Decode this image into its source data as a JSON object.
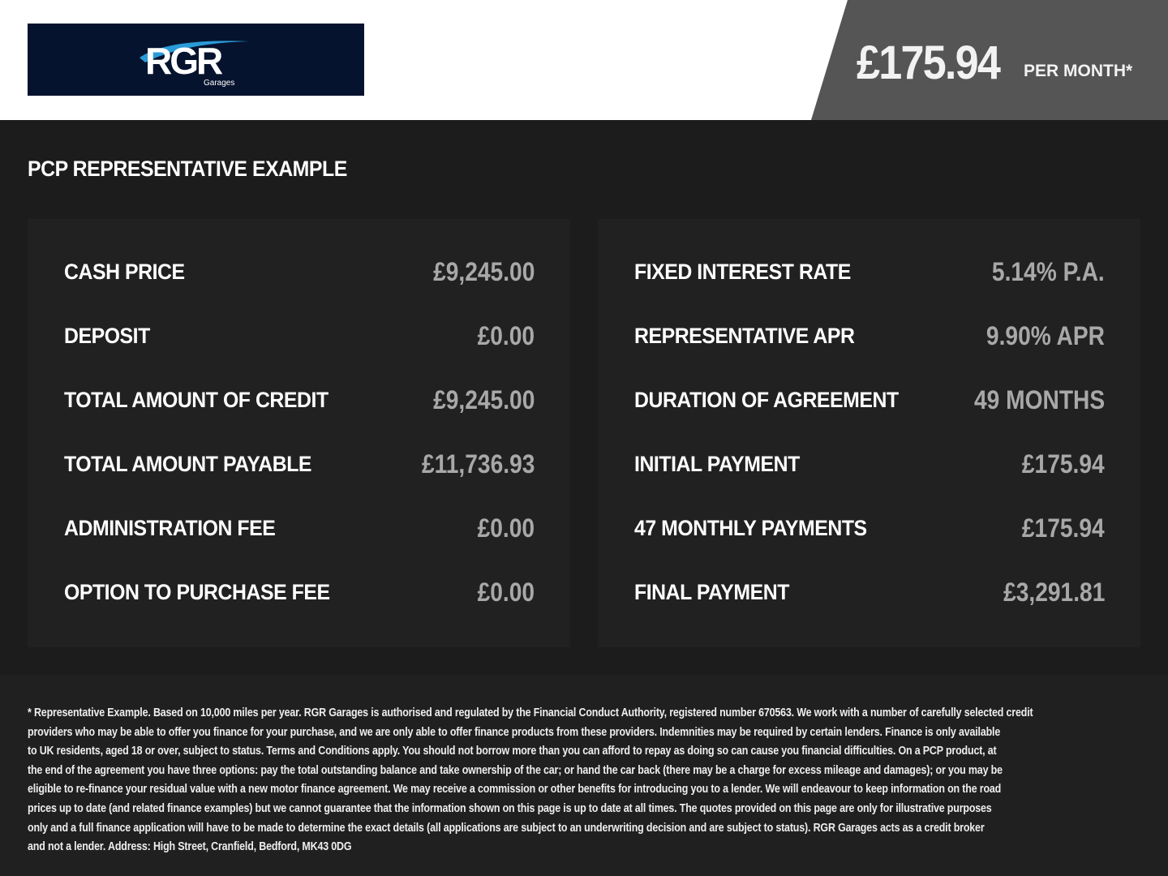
{
  "header": {
    "logo_text": "RGR",
    "logo_sub": "Garages",
    "monthly_price": "£175.94",
    "per_month_label": "PER MONTH*",
    "colors": {
      "logo_bg": "#06132e",
      "logo_accent": "#2a9ad8",
      "price_bg": "#555555"
    }
  },
  "title": "PCP REPRESENTATIVE EXAMPLE",
  "left_panel": [
    {
      "label": "CASH PRICE",
      "value": "£9,245.00"
    },
    {
      "label": "DEPOSIT",
      "value": "£0.00"
    },
    {
      "label": "TOTAL AMOUNT OF CREDIT",
      "value": "£9,245.00"
    },
    {
      "label": "TOTAL AMOUNT PAYABLE",
      "value": "£11,736.93"
    },
    {
      "label": "ADMINISTRATION FEE",
      "value": "£0.00"
    },
    {
      "label": "OPTION TO PURCHASE FEE",
      "value": "£0.00"
    }
  ],
  "right_panel": [
    {
      "label": "FIXED INTEREST RATE",
      "value": "5.14% P.A."
    },
    {
      "label": "REPRESENTATIVE APR",
      "value": "9.90% APR"
    },
    {
      "label": "DURATION OF AGREEMENT",
      "value": "49 MONTHS"
    },
    {
      "label": "INITIAL PAYMENT",
      "value": "£175.94"
    },
    {
      "label": "47 MONTHLY PAYMENTS",
      "value": "£175.94"
    },
    {
      "label": "FINAL PAYMENT",
      "value": "£3,291.81"
    }
  ],
  "disclaimer": [
    "* Representative Example. Based on 10,000 miles per year. RGR Garages is authorised and regulated by the Financial Conduct Authority, registered number 670563. We work with a number of carefully selected credit",
    "providers who may be able to offer you finance for your purchase, and we are only able to offer finance products from these providers. Indemnities may be required by certain lenders. Finance is only available",
    "to UK residents, aged 18 or over, subject to status. Terms and Conditions apply. You should not borrow more than you can afford to repay as doing so can cause you financial difficulties. On a PCP product, at",
    "the end of the agreement you have three options: pay the total outstanding balance and take ownership of the car; or hand the car back (there may be a charge for excess mileage and damages); or you may be",
    "eligible to re-finance your residual value with a new motor finance agreement. We may receive a commission or other benefits for introducing you to a lender. We will endeavour to keep information on the road",
    "prices up to date (and related finance examples) but we cannot guarantee that the information shown on this page is up to date at all times. The quotes provided on this page are only for illustrative purposes",
    "only and a full finance application will have to be made to determine the exact details (all applications are subject to an underwriting decision and are subject to status). RGR Garages acts as a credit broker",
    "and not a lender. Address: High Street, Cranfield, Bedford, MK43 0DG"
  ]
}
